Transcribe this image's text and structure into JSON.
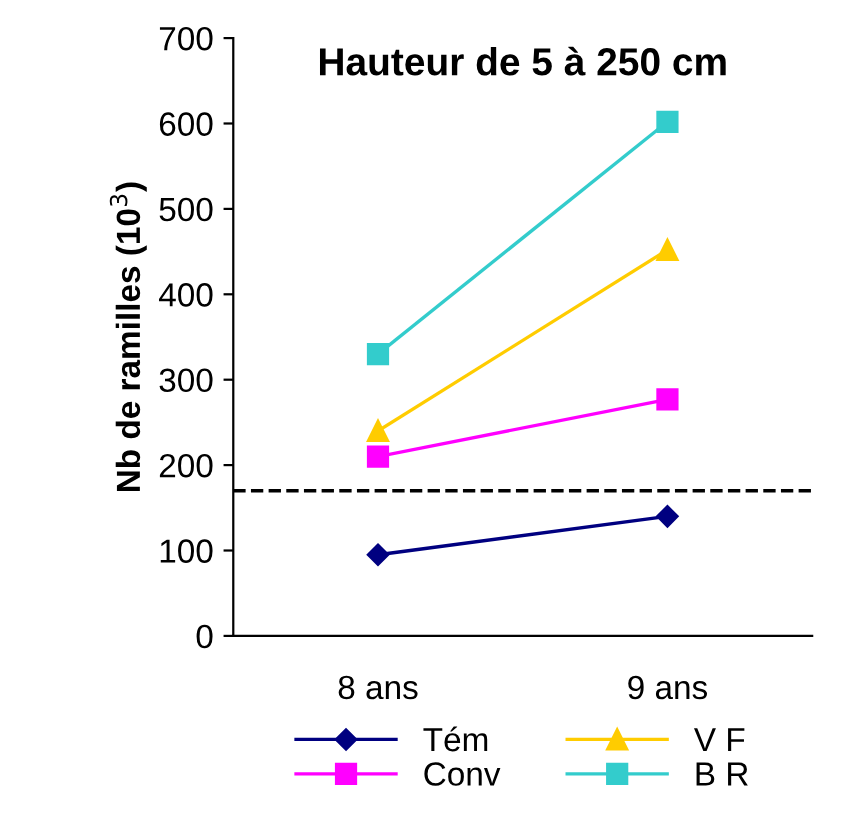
{
  "chart_data": {
    "type": "line",
    "title": "Hauteur de 5 à 250 cm",
    "ylabel": "Nb de ramilles (10$^{3}$)",
    "categories": [
      "8 ans",
      "9 ans"
    ],
    "series": [
      {
        "name": "Tém",
        "color": "#000080",
        "values": [
          95,
          140
        ],
        "marker": "diamond"
      },
      {
        "name": "Conv",
        "color": "#ff00ff",
        "values": [
          210,
          277
        ],
        "marker": "square"
      },
      {
        "name": "V F",
        "color": "#ffcc00",
        "values": [
          240,
          452
        ],
        "marker": "triangle"
      },
      {
        "name": "B R",
        "color": "#33cccc",
        "values": [
          330,
          602
        ],
        "marker": "square"
      }
    ],
    "ylim": [
      0,
      700
    ],
    "yticks": [
      0,
      100,
      200,
      300,
      400,
      500,
      600,
      700
    ],
    "ref_lines": [
      {
        "axis": "y",
        "value": 170,
        "color": "#000000",
        "line_style": "dashed"
      }
    ],
    "grid": false,
    "legend": "bottom",
    "line_style": "solid"
  }
}
